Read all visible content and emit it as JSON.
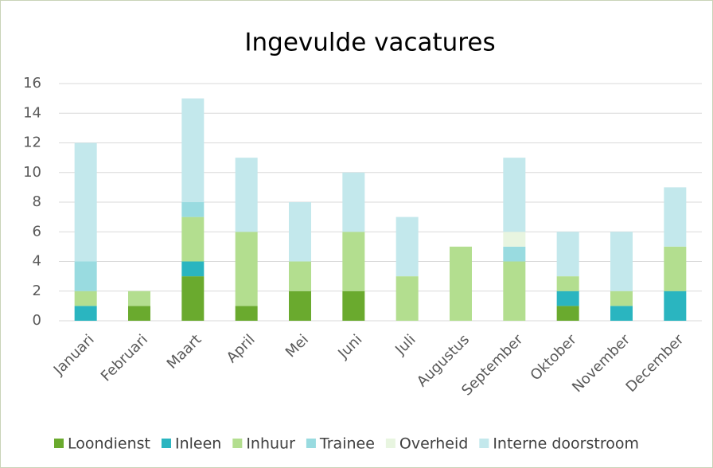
{
  "chart_data": {
    "type": "stacked_bar",
    "title": "Ingevulde vacatures",
    "categories": [
      "Januari",
      "Februari",
      "Maart",
      "April",
      "Mei",
      "Juni",
      "Juli",
      "Augustus",
      "September",
      "Oktober",
      "November",
      "December"
    ],
    "series": [
      {
        "name": "Loondienst",
        "color": "#6aaa2e",
        "values": [
          0,
          1,
          3,
          1,
          2,
          2,
          0,
          0,
          0,
          1,
          0,
          0
        ]
      },
      {
        "name": "Inleen",
        "color": "#2ab5c0",
        "values": [
          1,
          0,
          1,
          0,
          0,
          0,
          0,
          0,
          0,
          1,
          1,
          2
        ]
      },
      {
        "name": "Inhuur",
        "color": "#b3de8f",
        "values": [
          1,
          1,
          3,
          5,
          2,
          4,
          3,
          5,
          4,
          1,
          1,
          3
        ]
      },
      {
        "name": "Trainee",
        "color": "#99dbe0",
        "values": [
          2,
          0,
          1,
          0,
          0,
          0,
          0,
          0,
          1,
          0,
          0,
          0
        ]
      },
      {
        "name": "Overheid",
        "color": "#e8f5e0",
        "values": [
          0,
          0,
          0,
          0,
          0,
          0,
          0,
          0,
          1,
          0,
          0,
          0
        ]
      },
      {
        "name": "Interne doorstroom",
        "color": "#c3e8ec",
        "values": [
          8,
          0,
          7,
          5,
          4,
          4,
          4,
          0,
          5,
          3,
          4,
          4
        ]
      }
    ],
    "ylim": [
      0,
      16
    ],
    "yticks": [
      0,
      2,
      4,
      6,
      8,
      10,
      12,
      14,
      16
    ],
    "grid": true,
    "legend": "bottom"
  }
}
